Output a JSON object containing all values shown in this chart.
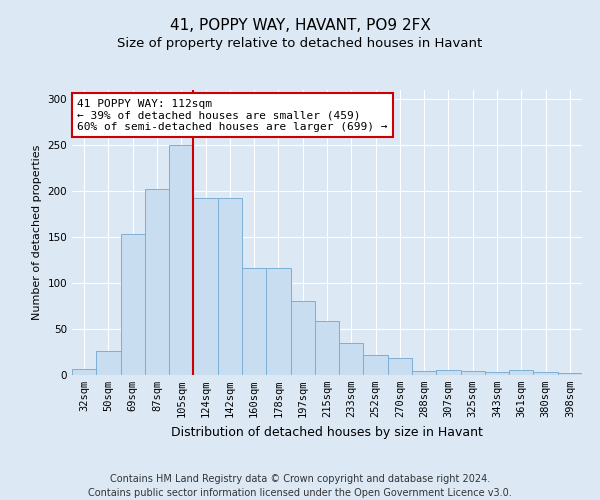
{
  "title1": "41, POPPY WAY, HAVANT, PO9 2FX",
  "title2": "Size of property relative to detached houses in Havant",
  "xlabel": "Distribution of detached houses by size in Havant",
  "ylabel": "Number of detached properties",
  "bar_labels": [
    "32sqm",
    "50sqm",
    "69sqm",
    "87sqm",
    "105sqm",
    "124sqm",
    "142sqm",
    "160sqm",
    "178sqm",
    "197sqm",
    "215sqm",
    "233sqm",
    "252sqm",
    "270sqm",
    "288sqm",
    "307sqm",
    "325sqm",
    "343sqm",
    "361sqm",
    "380sqm",
    "398sqm"
  ],
  "bar_values": [
    7,
    26,
    153,
    202,
    250,
    192,
    192,
    116,
    116,
    80,
    59,
    35,
    22,
    19,
    4,
    5,
    4,
    3,
    5,
    3,
    2
  ],
  "bar_color": "#c9ddf0",
  "bar_edge_color": "#7bafd4",
  "background_color": "#dce9f5",
  "grid_color": "#ffffff",
  "vline_color": "#cc0000",
  "vline_x": 4.5,
  "annotation_text": "41 POPPY WAY: 112sqm\n← 39% of detached houses are smaller (459)\n60% of semi-detached houses are larger (699) →",
  "annotation_box_color": "#ffffff",
  "annotation_box_edge": "#cc0000",
  "footnote": "Contains HM Land Registry data © Crown copyright and database right 2024.\nContains public sector information licensed under the Open Government Licence v3.0.",
  "ylim": [
    0,
    310
  ],
  "yticks": [
    0,
    50,
    100,
    150,
    200,
    250,
    300
  ],
  "title1_fontsize": 11,
  "title2_fontsize": 9.5,
  "xlabel_fontsize": 9,
  "ylabel_fontsize": 8,
  "tick_fontsize": 7.5,
  "annotation_fontsize": 8,
  "footnote_fontsize": 7
}
